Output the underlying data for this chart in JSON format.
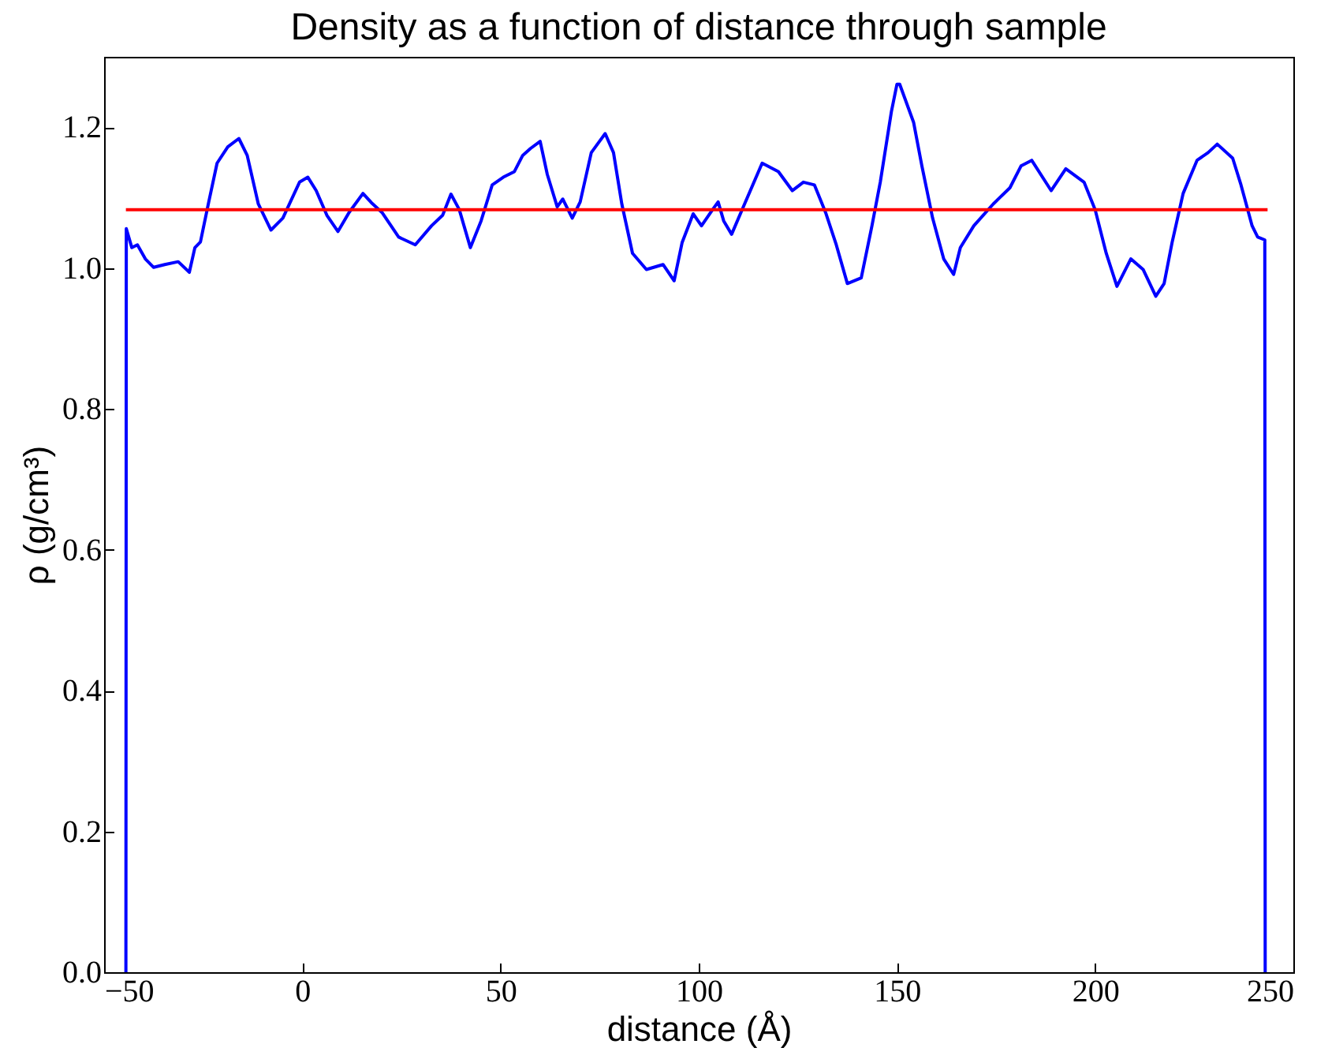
{
  "chart_data": {
    "type": "line",
    "title": "Density as a function of distance through sample",
    "xlabel": "distance (Å)",
    "ylabel": "ρ (g/cm³)",
    "xlim": [
      -50,
      250
    ],
    "xticks": [
      -50,
      0,
      50,
      100,
      150,
      200,
      250
    ],
    "ylim": [
      0,
      1.3
    ],
    "yticks": [
      {
        "value": 0,
        "label": "0.0"
      },
      {
        "value": 0.2,
        "label": "0.2"
      },
      {
        "value": 0.4,
        "label": "0.4"
      },
      {
        "value": 0.6,
        "label": "0.6"
      },
      {
        "value": 0.8,
        "label": "0.8"
      },
      {
        "value": 1,
        "label": "1.0"
      },
      {
        "value": 1.2,
        "label": "1.2"
      }
    ],
    "grid": false,
    "marker": "none",
    "line_style": "solid",
    "series": [
      {
        "color": "#0000ff",
        "x": [
          -44.5,
          -44.4,
          -43,
          -41.6,
          -39.6,
          -37.5,
          -34.7,
          -31.3,
          -28.5,
          -27.1,
          -25.7,
          -23.6,
          -21.5,
          -18.8,
          -16,
          -13.9,
          -11.1,
          -7.9,
          -4.9,
          -0.7,
          1.4,
          3.5,
          6.2,
          9,
          11.8,
          15.3,
          17.4,
          20.1,
          24.3,
          28.5,
          32.6,
          35.4,
          37.5,
          39.6,
          42.4,
          45.1,
          47.9,
          50.7,
          53.5,
          55.6,
          57.6,
          60,
          61.8,
          64.3,
          65.7,
          68.1,
          70.1,
          72.9,
          76.4,
          78.5,
          80.6,
          83.3,
          86.8,
          91,
          93.8,
          95.8,
          98.6,
          100.7,
          103.5,
          104.9,
          106.3,
          108.3,
          111.8,
          116,
          120.1,
          123.6,
          126.4,
          129.2,
          132,
          134.7,
          137.5,
          141,
          143.7,
          145.8,
          148.6,
          150,
          150.7,
          154.2,
          156.3,
          159,
          161.8,
          164.3,
          166,
          169.4,
          174.3,
          178.5,
          181.3,
          184,
          188.9,
          192.6,
          197.2,
          200,
          202.8,
          205.5,
          209,
          212.1,
          215.3,
          217.4,
          219.4,
          222.2,
          225.7,
          228.5,
          230.8,
          234.7,
          236.8,
          239.6,
          241,
          242.8,
          242.9
        ],
        "values": [
          0,
          1.056,
          1.029,
          1.033,
          1.013,
          1.001,
          1.005,
          1.009,
          0.994,
          1.029,
          1.037,
          1.094,
          1.149,
          1.172,
          1.184,
          1.16,
          1.091,
          1.054,
          1.071,
          1.122,
          1.129,
          1.11,
          1.075,
          1.052,
          1.079,
          1.106,
          1.093,
          1.079,
          1.044,
          1.033,
          1.06,
          1.075,
          1.105,
          1.083,
          1.029,
          1.067,
          1.118,
          1.129,
          1.137,
          1.16,
          1.17,
          1.18,
          1.133,
          1.087,
          1.098,
          1.071,
          1.094,
          1.164,
          1.191,
          1.164,
          1.091,
          1.021,
          0.998,
          1.005,
          0.982,
          1.036,
          1.077,
          1.06,
          1.083,
          1.094,
          1.067,
          1.048,
          1.094,
          1.149,
          1.137,
          1.11,
          1.122,
          1.118,
          1.079,
          1.033,
          0.978,
          0.986,
          1.06,
          1.122,
          1.222,
          1.261,
          1.261,
          1.207,
          1.145,
          1.071,
          1.013,
          0.991,
          1.029,
          1.06,
          1.091,
          1.114,
          1.145,
          1.153,
          1.11,
          1.141,
          1.122,
          1.083,
          1.021,
          0.974,
          1.013,
          0.998,
          0.96,
          0.978,
          1.036,
          1.106,
          1.153,
          1.164,
          1.176,
          1.156,
          1.118,
          1.06,
          1.044,
          1.04,
          0
        ]
      },
      {
        "color": "#ff0000",
        "x": [
          -44.5,
          243.5
        ],
        "values": [
          1.083,
          1.083
        ]
      }
    ]
  }
}
